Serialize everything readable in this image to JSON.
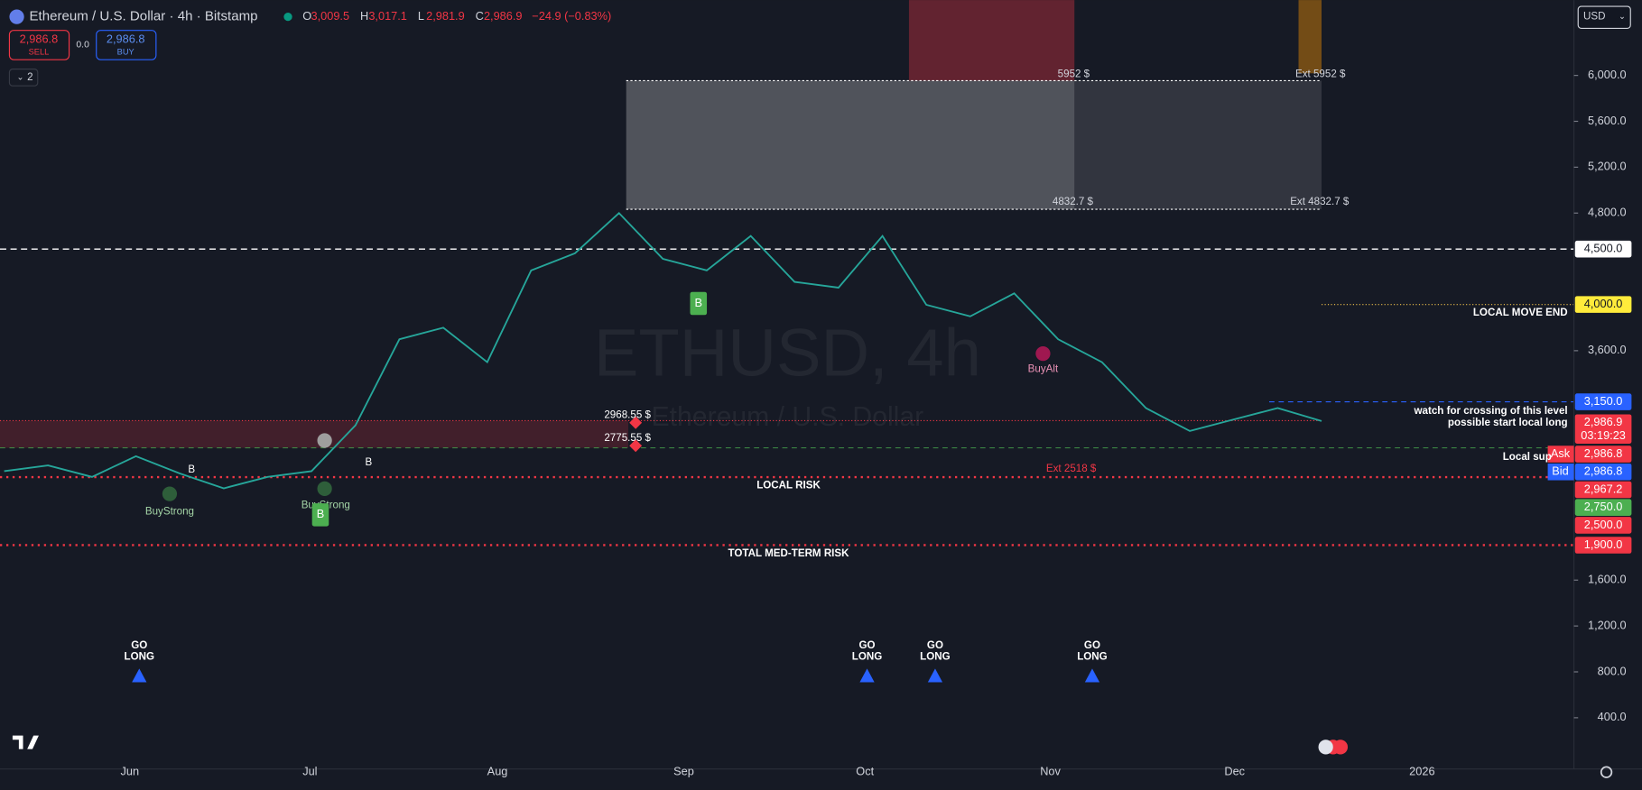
{
  "header": {
    "symbol": "Ethereum / U.S. Dollar · 4h · Bitstamp",
    "ohlc": [
      {
        "key": "O",
        "value": "3,009.5"
      },
      {
        "key": "H",
        "value": "3,017.1"
      },
      {
        "key": "L",
        "value": "2,981.9"
      },
      {
        "key": "C",
        "value": "2,986.9"
      }
    ],
    "change": "−24.9 (−0.83%)"
  },
  "trade": {
    "sell_price": "2,986.8",
    "sell": "SELL",
    "spread": "0.0",
    "buy_price": "2,986.8",
    "buy": "BUY"
  },
  "indicators_toggle": "2",
  "currency": "USD",
  "watermark": {
    "symbol": "ETHUSD, 4h",
    "name": "Ethereum / U.S. Dollar"
  },
  "price_axis": {
    "range": [
      -47,
      6657
    ],
    "ticks": [
      {
        "value": 6000,
        "label": "6,000.0"
      },
      {
        "value": 5600,
        "label": "5,600.0"
      },
      {
        "value": 5200,
        "label": "5,200.0"
      },
      {
        "value": 4800,
        "label": "4,800.0"
      },
      {
        "value": 3600,
        "label": "3,600.0"
      },
      {
        "value": 1600,
        "label": "1,600.0"
      },
      {
        "value": 1200,
        "label": "1,200.0"
      },
      {
        "value": 800,
        "label": "800.0"
      },
      {
        "value": 400,
        "label": "400.0"
      }
    ]
  },
  "price": {
    "color": "#26a69a",
    "closes": [
      2550,
      2600,
      2500,
      2680,
      2530,
      2400,
      2500,
      2550,
      2950,
      3700,
      3800,
      3500,
      4300,
      4450,
      4800,
      4400,
      4300,
      4600,
      4200,
      4150,
      4600,
      4000,
      3900,
      4100,
      3700,
      3500,
      3100,
      2900,
      3000,
      3100,
      2987
    ]
  },
  "badges": [
    {
      "label": "4,500.0",
      "kind": "white"
    },
    {
      "label": "4,000.0",
      "kind": "yellow"
    },
    {
      "label": "3,150.0",
      "kind": "blue"
    },
    {
      "label": "2,986.9",
      "countdown": "03:19:23",
      "kind": "red"
    },
    {
      "tag": "Ask",
      "label": "2,986.8",
      "kind": "red"
    },
    {
      "tag": "Bid",
      "label": "2,986.8",
      "kind": "blue"
    },
    {
      "label": "2,967.2",
      "kind": "red"
    },
    {
      "label": "2,750.0",
      "kind": "green"
    },
    {
      "label": "2,500.0",
      "kind": "red"
    },
    {
      "label": "1,900.0",
      "kind": "red"
    }
  ],
  "time_axis": [
    "Jun",
    "Jul",
    "Aug",
    "Sep",
    "Oct",
    "Nov",
    "Dec",
    "2026"
  ],
  "annotations": [
    "5952 $",
    "Ext 5952 $",
    "4832.7 $",
    "Ext 4832.7 $",
    "2968.55 $",
    "2775.55 $",
    "Ext 2518 $",
    "LOCAL RISK",
    "TOTAL MED-TERM RISK",
    "LOCAL MOVE END",
    "watch for crossing of this level",
    "possible start local long",
    "Local sup",
    "BuyStrong",
    "BuyStrong",
    "BuyAlt",
    "B",
    "B",
    "B",
    "B"
  ],
  "signals": [
    {
      "top": "GO",
      "bottom": "LONG"
    },
    {
      "top": "GO",
      "bottom": "LONG"
    },
    {
      "top": "GO",
      "bottom": "LONG"
    },
    {
      "top": "GO",
      "bottom": "LONG"
    }
  ]
}
